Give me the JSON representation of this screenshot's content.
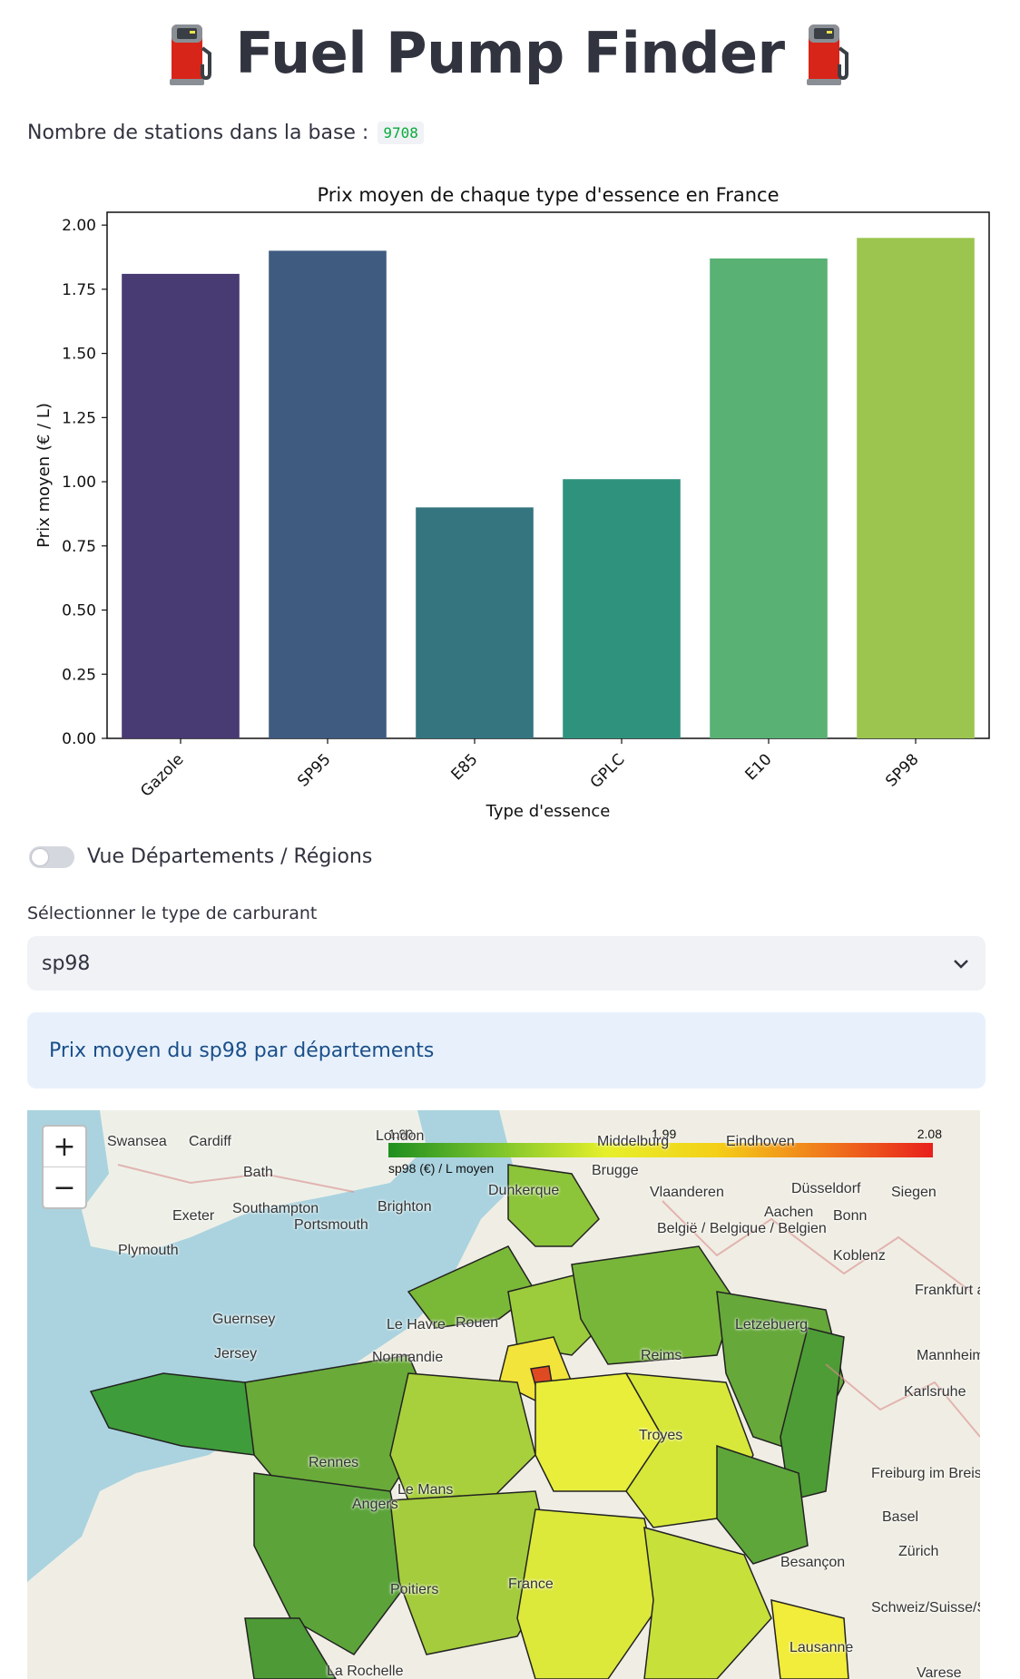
{
  "header": {
    "title": "Fuel Pump Finder",
    "left_icon": "fuel-pump-icon",
    "right_icon": "fuel-pump-icon"
  },
  "stations": {
    "label": "Nombre de stations dans la base :",
    "count": "9708"
  },
  "chart_data": {
    "type": "bar",
    "title": "Prix moyen de chaque type d'essence en France",
    "xlabel": "Type d'essence",
    "ylabel": "Prix moyen (€ / L)",
    "categories": [
      "Gazole",
      "SP95",
      "E85",
      "GPLC",
      "E10",
      "SP98"
    ],
    "values": [
      1.81,
      1.9,
      0.9,
      1.01,
      1.87,
      1.95
    ],
    "colors": [
      "#483a72",
      "#3f5b80",
      "#357580",
      "#2f927c",
      "#59b173",
      "#9bc54e"
    ],
    "ylim": [
      0,
      2.05
    ],
    "yticks": [
      "0.00",
      "0.25",
      "0.50",
      "0.75",
      "1.00",
      "1.25",
      "1.50",
      "1.75",
      "2.00"
    ],
    "grid": false
  },
  "toggle": {
    "label": "Vue Départements / Régions",
    "checked": false
  },
  "fuel_select": {
    "label": "Sélectionner le type de carburant",
    "value": "sp98"
  },
  "info_box": {
    "text": "Prix moyen du sp98 par départements"
  },
  "map": {
    "legend": {
      "min": "1.90",
      "mid": "1.99",
      "max": "2.08",
      "caption": "sp98 (€) / L moyen"
    },
    "zoom_in": "+",
    "zoom_out": "−",
    "place_labels": [
      "Swansea",
      "Cardiff",
      "London",
      "Middelburg",
      "Eindhoven",
      "Bath",
      "Brugge",
      "Düsseldorf",
      "Siegen",
      "Exeter",
      "Southampton",
      "Brighton",
      "Dunkerque",
      "Vlaanderen",
      "Aachen",
      "Bonn",
      "Portsmouth",
      "Plymouth",
      "België / Belgique / Belgien",
      "Koblenz",
      "Guernsey",
      "Le Havre",
      "Rouen",
      "Letzebuerg",
      "Frankfurt am Main",
      "Jersey",
      "Normandie",
      "Reims",
      "Mannheim",
      "Rennes",
      "Le Mans",
      "Troyes",
      "Karlsruhe",
      "Angers",
      "Freiburg im Breisgau",
      "Basel",
      "Zürich",
      "Besançon",
      "Poitiers",
      "France",
      "Schweiz/Suisse/Svizzera",
      "La Rochelle",
      "Lausanne",
      "Varese"
    ]
  }
}
